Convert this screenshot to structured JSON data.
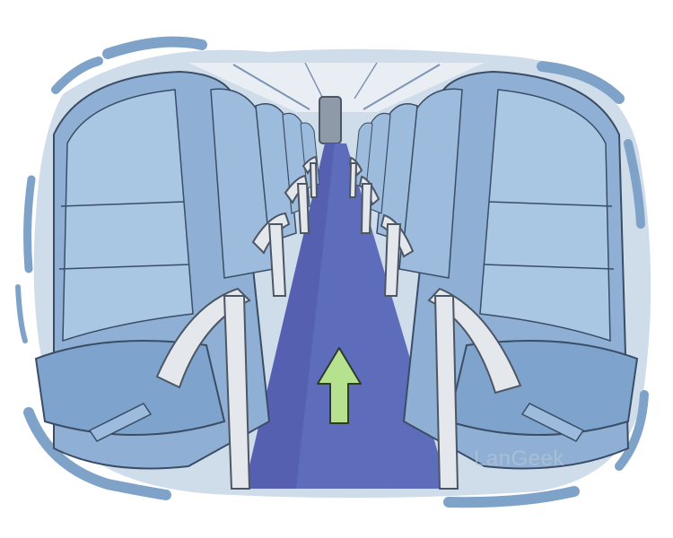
{
  "illustration": {
    "subject": "airplane-aisle",
    "arrow_icon": "up-arrow-icon",
    "colors": {
      "frame": "#7fa2c8",
      "cabin_wall": "#cfdcea",
      "seat_light": "#a9c6e3",
      "seat_mid": "#8fb0d4",
      "seat_dark": "#6f93bd",
      "aisle": "#5e6cbc",
      "aisle_shadow": "#4f5aa6",
      "armrest": "#e4e7ec",
      "arrow": "#b6e28f"
    }
  },
  "watermark": {
    "text": "LanGeek"
  }
}
